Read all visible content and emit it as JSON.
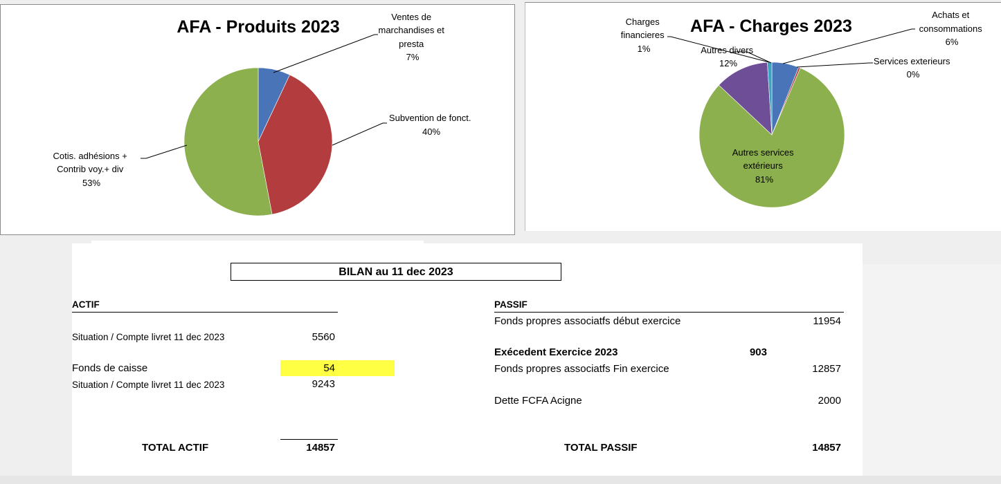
{
  "chart_data": [
    {
      "type": "pie",
      "title": "AFA - Produits 2023",
      "labels": [
        "Ventes de marchandises et presta",
        "Subvention de fonct.",
        "Cotis.  adhésions + Contrib voy.+ div"
      ],
      "values": [
        7,
        40,
        53
      ],
      "value_labels": [
        "7%",
        "40%",
        "53%"
      ],
      "colors": [
        "#4a74b8",
        "#b23c3e",
        "#8db04e"
      ],
      "label_lines": [
        [
          "Ventes de",
          "marchandises et",
          "presta",
          "7%"
        ],
        [
          "Subvention de fonct.",
          "40%"
        ],
        [
          "Cotis.  adhésions +",
          "Contrib voy.+ div",
          "53%"
        ]
      ]
    },
    {
      "type": "pie",
      "title": "AFA - Charges 2023",
      "labels": [
        "Achats et consommations",
        "Services exterieurs",
        "Autres services extérieurs",
        "Autres divers",
        "Charges financieres"
      ],
      "values": [
        6,
        0.4,
        80.6,
        12,
        1
      ],
      "value_labels": [
        "6%",
        "0%",
        "81%",
        "12%",
        "1%"
      ],
      "colors": [
        "#4a74b8",
        "#b23c3e",
        "#8db04e",
        "#6f4e98",
        "#3ea3c2"
      ],
      "label_lines": [
        [
          "Achats et",
          "consommations",
          "6%"
        ],
        [
          "Services exterieurs",
          "0%"
        ],
        [
          "Autres services",
          "extérieurs",
          "81%"
        ],
        [
          "Autres divers",
          "12%"
        ],
        [
          "Charges",
          "financieres",
          "1%"
        ]
      ]
    }
  ],
  "bilan": {
    "title": "BILAN  au 11 dec 2023",
    "actif": {
      "header": "ACTIF",
      "rows": [
        {
          "label": "Situation / Compte livret  11 dec 2023",
          "value": "5560"
        },
        {
          "label": "Fonds de caisse",
          "value": "54"
        },
        {
          "label": "Situation / Compte livret  11 dec 2023",
          "value": "9243"
        }
      ],
      "total_label": "TOTAL ACTIF",
      "total_value": "14857",
      "highlight_color": "#ffff44"
    },
    "passif": {
      "header": "PASSIF",
      "rows": [
        {
          "label": "Fonds propres associatfs début exercice",
          "value": "11954"
        },
        {
          "label": "Exécedent Exercice  2023",
          "value": "903"
        },
        {
          "label": "Fonds propres associatfs Fin exercice",
          "value": "12857"
        },
        {
          "label": "Dette FCFA Acigne",
          "value": "2000"
        }
      ],
      "total_label": "TOTAL PASSIF",
      "total_value": "14857"
    }
  }
}
